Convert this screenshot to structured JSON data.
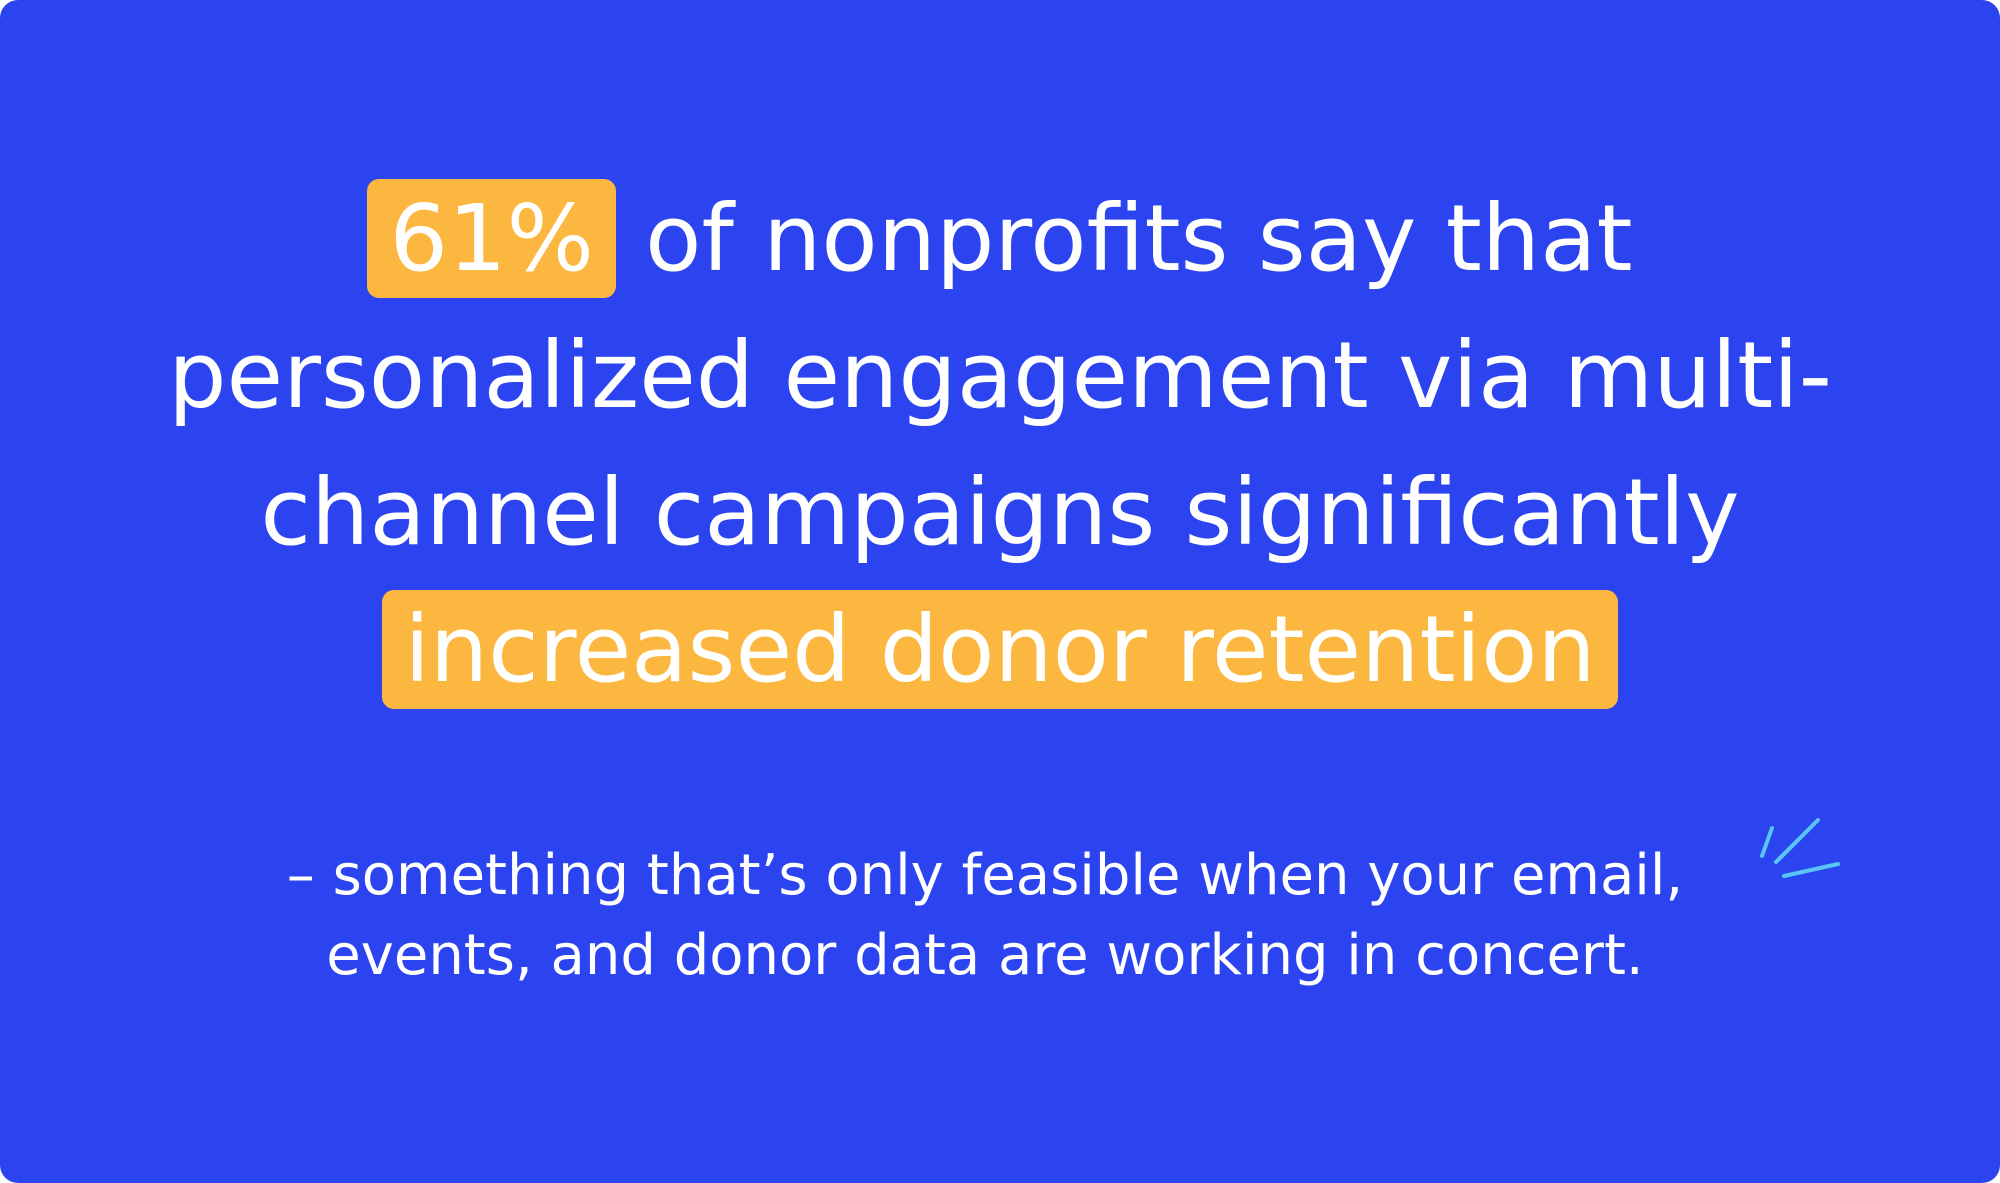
{
  "headline": {
    "stat": "61%",
    "line1_rest": " of nonprofits say that",
    "line2": "personalized engagement via multi-",
    "line3": "channel campaigns significantly",
    "line4_highlight": "increased donor retention"
  },
  "subtext": {
    "line1": "– something that’s only feasible when your email,",
    "line2": "events, and donor data are working in concert."
  },
  "colors": {
    "background": "#2B44F0",
    "highlight": "#FBB73F",
    "text": "#FFFFFF",
    "accent_lines": "#58C6F2"
  },
  "decoration": {
    "sparkle_icon": "sparkle-lines-icon"
  }
}
